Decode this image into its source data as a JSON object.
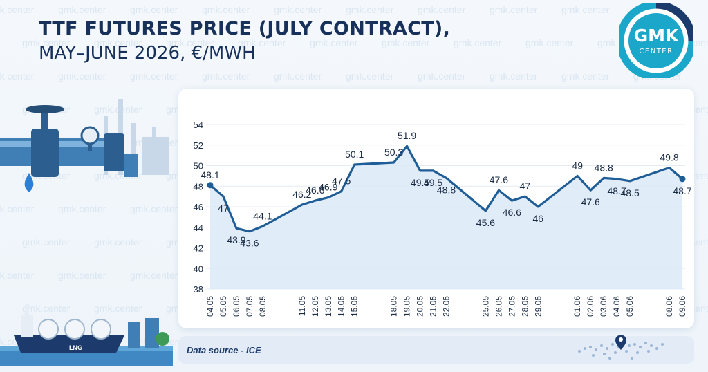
{
  "header": {
    "title": "TTF FUTURES PRICE (JULY CONTRACT),",
    "subtitle": "MAY–JUNE 2026, €/MWH"
  },
  "logo": {
    "line1": "GMK",
    "line2": "CENTER"
  },
  "watermark": "gmk.center",
  "footer": {
    "source": "Data source - ICE"
  },
  "illustration": {
    "ship_label": "LNG"
  },
  "colors": {
    "line": "#1f5d97",
    "area": "#dbe9f7",
    "title": "#17315a",
    "logo_teal": "#1aa7c9",
    "logo_navy": "#1c3a6b"
  },
  "chart_data": {
    "type": "area",
    "title": "TTF FUTURES PRICE (JULY CONTRACT), MAY–JUNE 2026, €/MWH",
    "xlabel": "",
    "ylabel": "",
    "ylim": [
      38,
      54
    ],
    "yticks": [
      38,
      40,
      42,
      44,
      46,
      48,
      50,
      52,
      54
    ],
    "grid": true,
    "x_axis": "daily calendar dates, 04.05 to 09.06",
    "series": [
      {
        "points": [
          {
            "date": "04.05",
            "value": 48.1,
            "label": "48.1",
            "show_tick": true
          },
          {
            "date": "05.05",
            "value": 47,
            "label": "47",
            "show_tick": true
          },
          {
            "date": "06.05",
            "value": 43.9,
            "label": "43.9",
            "show_tick": true
          },
          {
            "date": "07.05",
            "value": 43.6,
            "label": "43.6",
            "show_tick": true
          },
          {
            "date": "08.05",
            "value": 44.1,
            "label": "44.1",
            "show_tick": true
          },
          {
            "date": "11.05",
            "value": 46.2,
            "label": "46.2",
            "show_tick": true
          },
          {
            "date": "12.05",
            "value": 46.6,
            "label": "46.6",
            "show_tick": true
          },
          {
            "date": "13.05",
            "value": 46.9,
            "label": "46.9",
            "show_tick": true
          },
          {
            "date": "14.05",
            "value": 47.5,
            "label": "47.5",
            "show_tick": true
          },
          {
            "date": "15.05",
            "value": 50.1,
            "label": "50.1",
            "show_tick": true
          },
          {
            "date": "18.05",
            "value": 50.3,
            "label": "50.3",
            "show_tick": true
          },
          {
            "date": "19.05",
            "value": 51.9,
            "label": "51.9",
            "show_tick": true
          },
          {
            "date": "20.05",
            "value": 49.5,
            "label": "49.5",
            "show_tick": true
          },
          {
            "date": "21.05",
            "value": 49.5,
            "label": "49.5",
            "show_tick": true
          },
          {
            "date": "22.05",
            "value": 48.8,
            "label": "48.8",
            "show_tick": true
          },
          {
            "date": "25.05",
            "value": 45.6,
            "label": "45.6",
            "show_tick": true
          },
          {
            "date": "26.05",
            "value": 47.6,
            "label": "47.6",
            "show_tick": true
          },
          {
            "date": "27.05",
            "value": 46.6,
            "label": "46.6",
            "show_tick": true
          },
          {
            "date": "28.05",
            "value": 47,
            "label": "47",
            "show_tick": true
          },
          {
            "date": "29.05",
            "value": 46,
            "label": "46",
            "show_tick": true
          },
          {
            "date": "01.06",
            "value": 49,
            "label": "49",
            "show_tick": true
          },
          {
            "date": "02.06",
            "value": 47.6,
            "label": "47.6",
            "show_tick": true
          },
          {
            "date": "03.06",
            "value": 48.8,
            "label": "48.8",
            "show_tick": true
          },
          {
            "date": "04.06",
            "value": 48.7,
            "label": "48.7",
            "show_tick": true
          },
          {
            "date": "05.06",
            "value": 48.5,
            "label": "48.5",
            "show_tick": true
          },
          {
            "date": "08.06",
            "value": 49.8,
            "label": "49.8",
            "show_tick": true
          },
          {
            "date": "09.06",
            "value": 48.7,
            "label": "48.7",
            "show_tick": true
          }
        ]
      }
    ]
  }
}
